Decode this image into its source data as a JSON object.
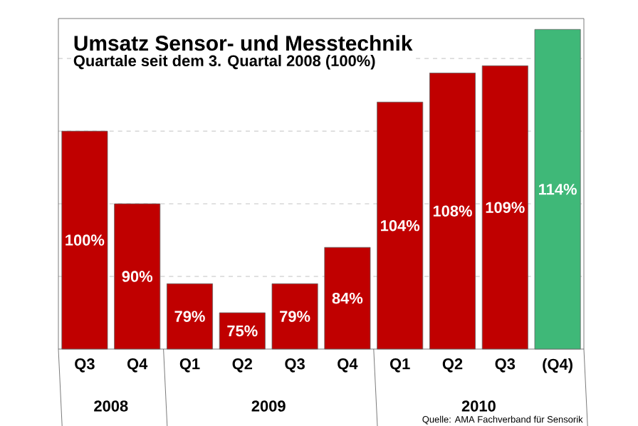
{
  "chart_data": {
    "type": "bar",
    "title": "Umsatz Sensor- und Messtechnik",
    "subtitle": "Quartale seit dem 3. Quartal 2008 (100%)",
    "categories": [
      "Q3",
      "Q4",
      "Q1",
      "Q2",
      "Q3",
      "Q4",
      "Q1",
      "Q2",
      "Q3",
      "(Q4)"
    ],
    "values": [
      100,
      90,
      79,
      75,
      79,
      84,
      104,
      108,
      109,
      114
    ],
    "value_labels": [
      "100%",
      "90%",
      "79%",
      "75%",
      "79%",
      "84%",
      "104%",
      "108%",
      "109%",
      "114%"
    ],
    "colors": [
      "#c00000",
      "#c00000",
      "#c00000",
      "#c00000",
      "#c00000",
      "#c00000",
      "#c00000",
      "#c00000",
      "#c00000",
      "#3fb878"
    ],
    "ylim": [
      70,
      115.5
    ],
    "yticks": [
      {
        "value": 80,
        "label": null
      },
      {
        "value": 90,
        "label": null
      },
      {
        "value": 100,
        "label": null
      },
      {
        "value": 110,
        "label": null
      }
    ],
    "tick_labels": "x",
    "grid": "y",
    "annotations": [
      "2008",
      "2009",
      "2010",
      "Quelle: AMA Fachverband für Sensorik"
    ]
  }
}
